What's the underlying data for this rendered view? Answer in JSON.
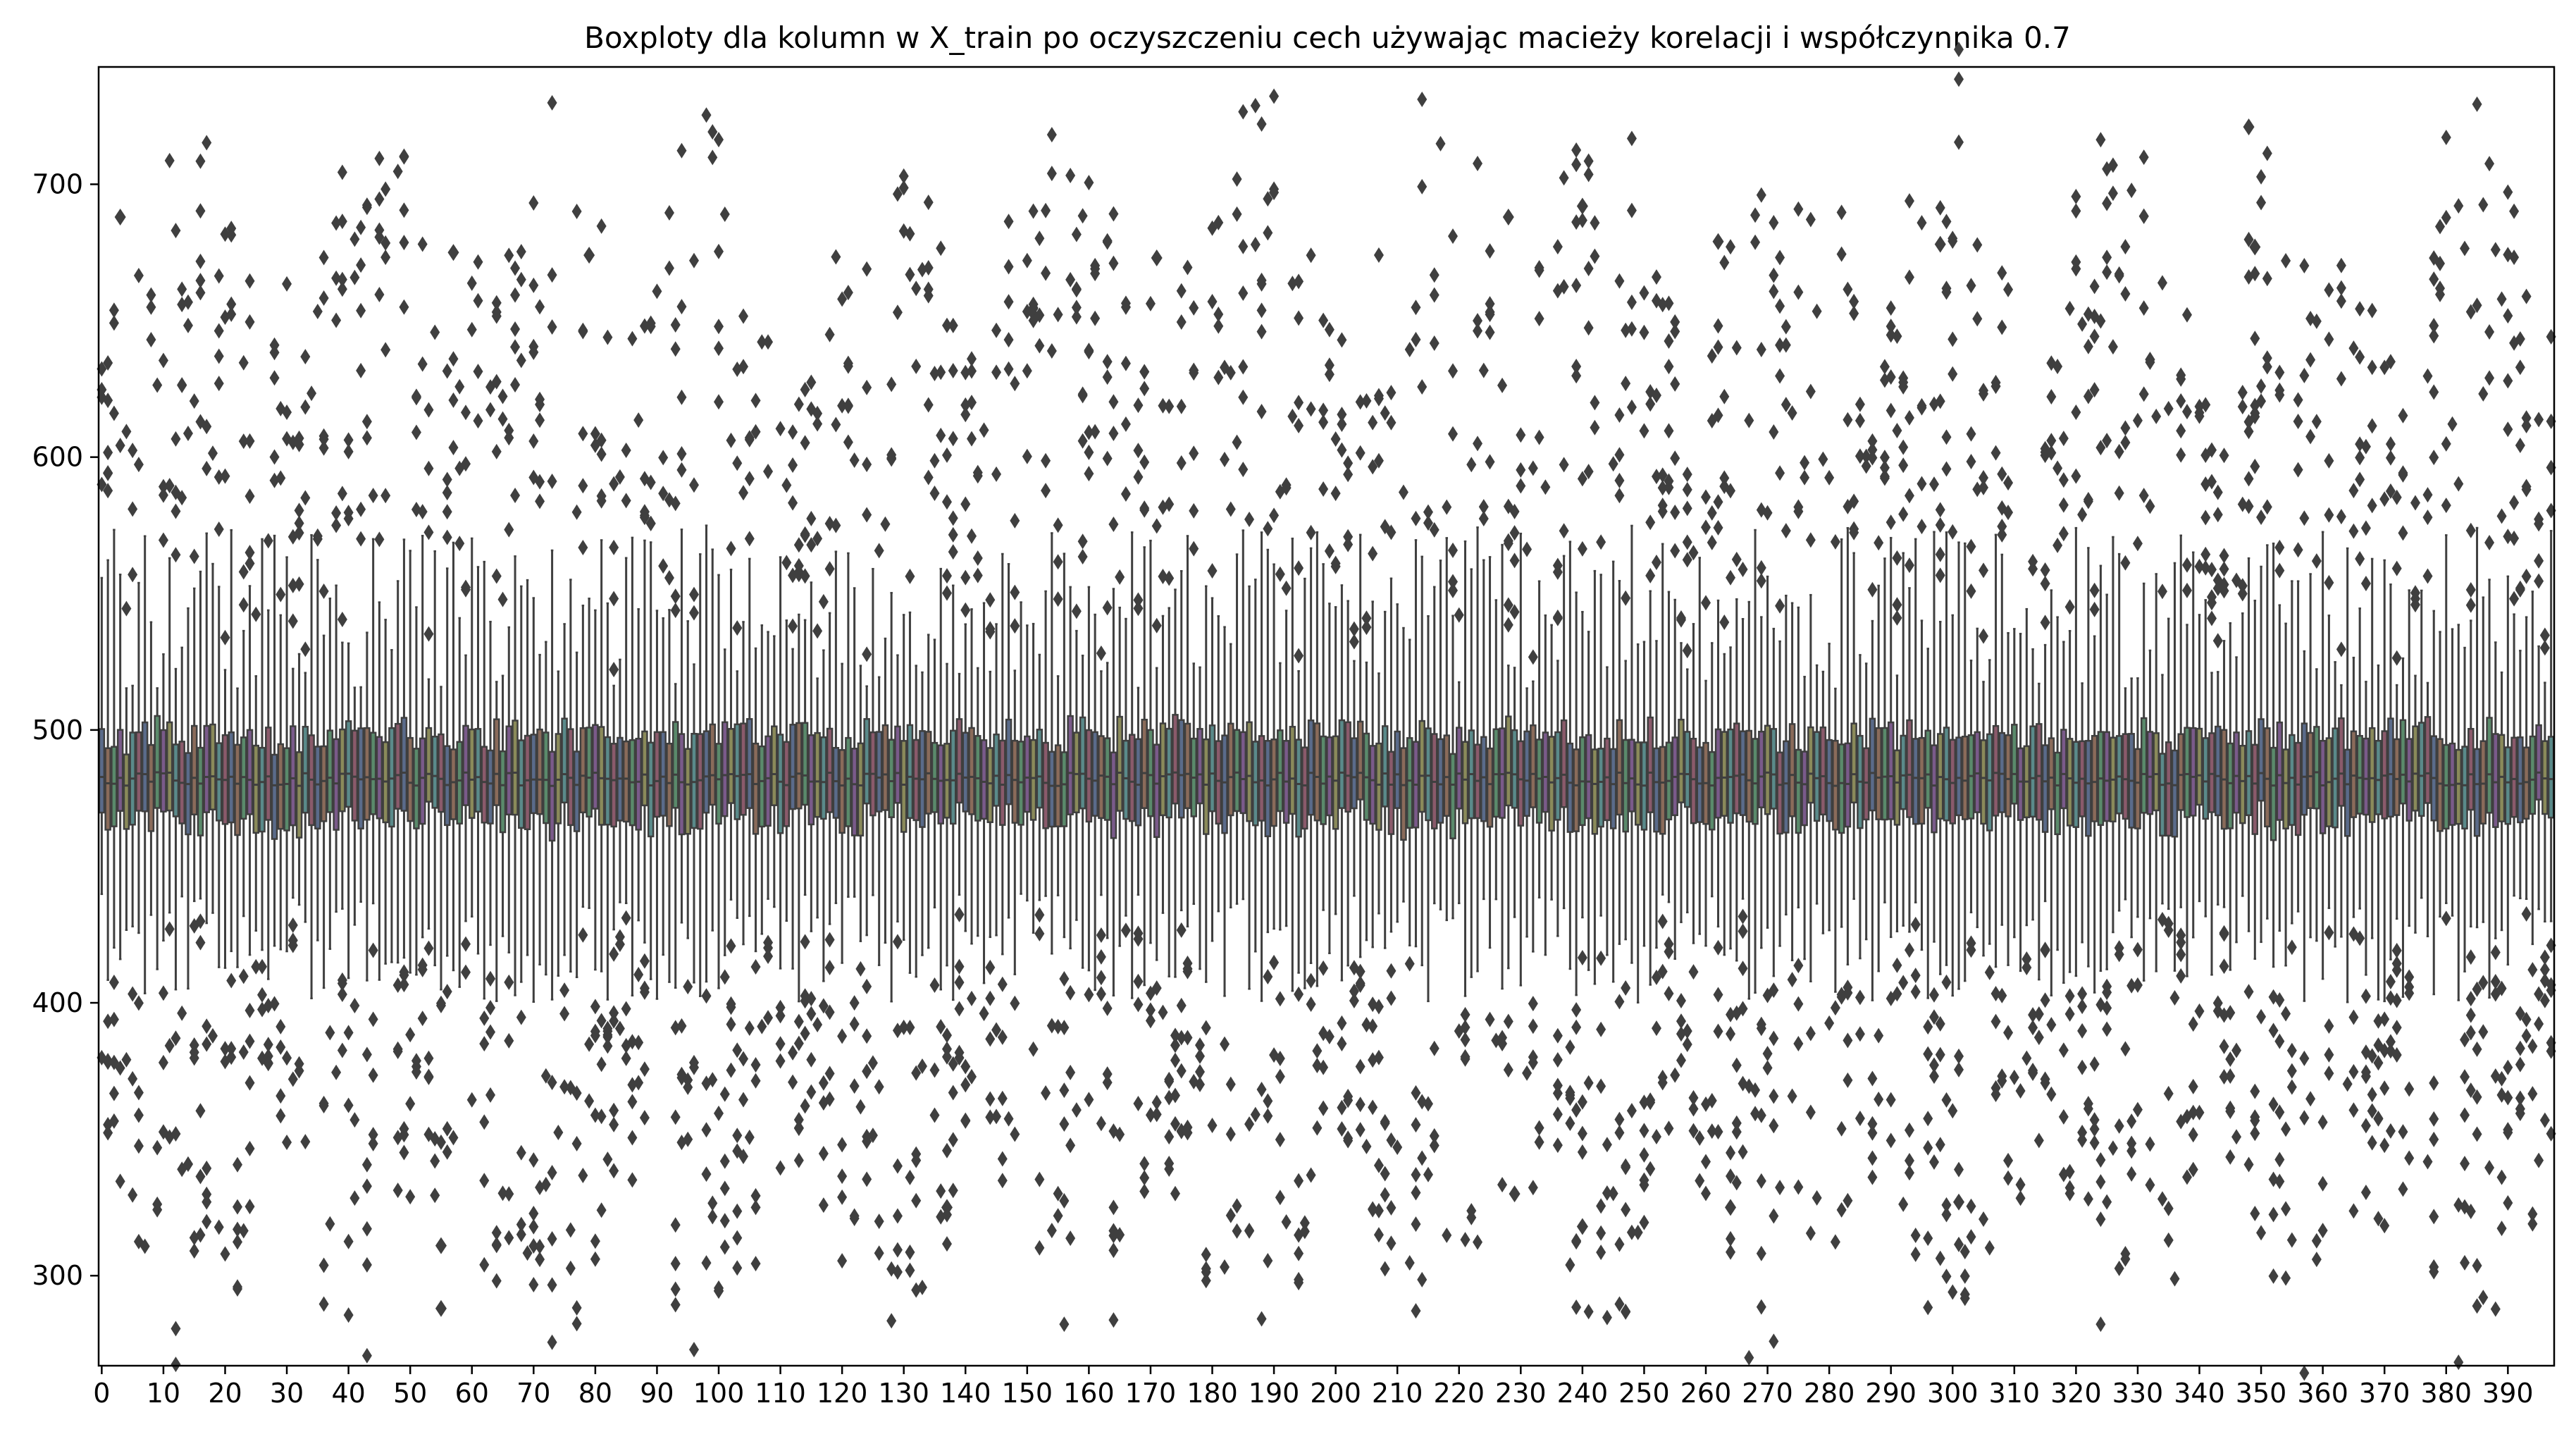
{
  "chart_data": {
    "type": "box",
    "title": "Boxploty dla kolumn w X_train po oczyszczeniu cech używając macieży korelacji i współczynnika 0.7",
    "xlabel": "",
    "ylabel": "",
    "n_columns": 398,
    "x_ticks": [
      "0",
      "10",
      "20",
      "30",
      "40",
      "50",
      "60",
      "70",
      "80",
      "90",
      "100",
      "110",
      "120",
      "130",
      "140",
      "150",
      "160",
      "170",
      "180",
      "190",
      "200",
      "210",
      "220",
      "230",
      "240",
      "250",
      "260",
      "270",
      "280",
      "290",
      "300",
      "310",
      "320",
      "330",
      "340",
      "350",
      "360",
      "370",
      "380",
      "390"
    ],
    "y_ticks": [
      300,
      400,
      500,
      600,
      700
    ],
    "xlim": [
      -0.5,
      397.5
    ],
    "ylim": [
      267,
      743
    ],
    "grid": false,
    "legend": "none",
    "colors": {
      "box_edge": "#3f3f3f",
      "outlier": "#3f3f3f",
      "axes": "#000000"
    },
    "typical_box": {
      "q1": 470,
      "median": 482,
      "q3": 495,
      "whisker_low": 420,
      "whisker_high": 545
    },
    "notable_outliers": [
      {
        "column": 3,
        "value": 688
      },
      {
        "column": 55,
        "value": 311
      },
      {
        "column": 55,
        "value": 288
      },
      {
        "column": 57,
        "value": 675
      },
      {
        "column": 79,
        "value": 674
      },
      {
        "column": 137,
        "value": 325
      },
      {
        "column": 171,
        "value": 673
      },
      {
        "column": 228,
        "value": 688
      },
      {
        "column": 229,
        "value": 330
      },
      {
        "column": 240,
        "value": 692
      },
      {
        "column": 240,
        "value": 318
      },
      {
        "column": 262,
        "value": 679
      },
      {
        "column": 264,
        "value": 325
      },
      {
        "column": 298,
        "value": 678
      },
      {
        "column": 301,
        "value": 327
      },
      {
        "column": 348,
        "value": 721
      },
      {
        "column": 349,
        "value": 677
      }
    ]
  }
}
